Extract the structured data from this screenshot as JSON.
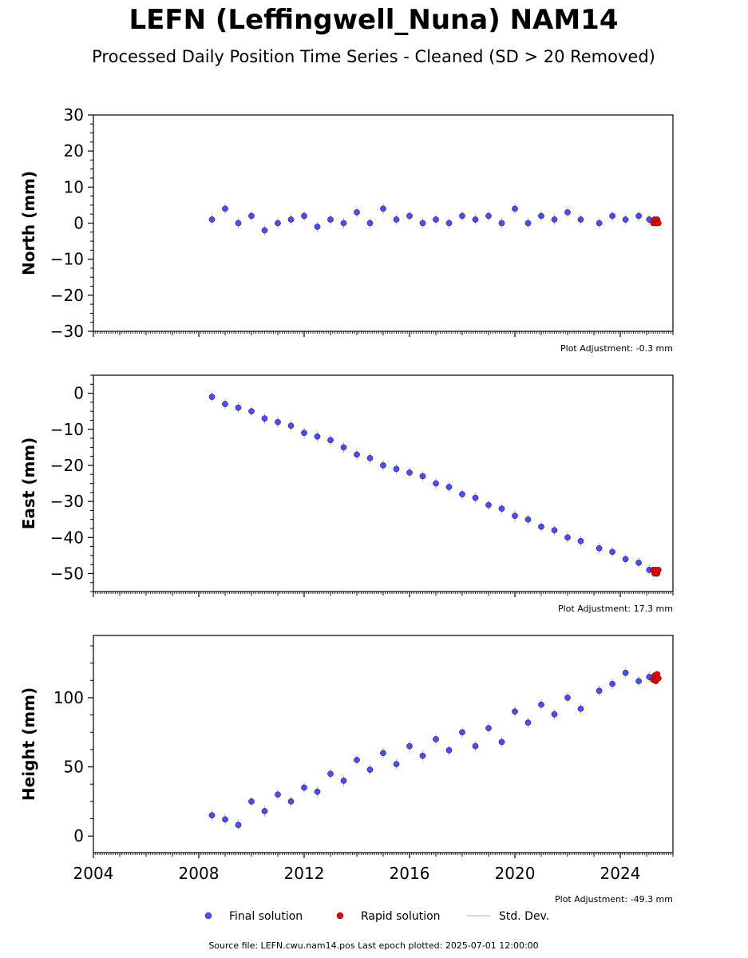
{
  "chart_data": {
    "type": "scatter",
    "title": "LEFN (Leffingwell_Nuna) NAM14",
    "subtitle": "Processed Daily Position Time Series - Cleaned (SD > 20 Removed)",
    "xlim": [
      2004,
      2026
    ],
    "x_ticks": [
      "2004",
      "2008",
      "2012",
      "2016",
      "2020",
      "2024"
    ],
    "x_tick_values": [
      2004,
      2008,
      2012,
      2016,
      2020,
      2024
    ],
    "legend_placement": "bottom-center",
    "legend": [
      "Final solution",
      "Rapid solution",
      "Std. Dev."
    ],
    "colors": {
      "final": "#4B4BFF",
      "rapid": "#EE0000",
      "stddev": "#888888"
    },
    "panels": [
      {
        "id": "north",
        "ylabel": "North (mm)",
        "ylim": [
          -30,
          30
        ],
        "y_ticks": [
          "30",
          "20",
          "10",
          "0",
          "−10",
          "−20",
          "−30"
        ],
        "y_tick_values": [
          30,
          20,
          10,
          0,
          -10,
          -20,
          -30
        ],
        "adjustment": "Plot Adjustment: -0.3 mm",
        "final_series": {
          "x": [
            2008.5,
            2009.0,
            2009.5,
            2010.0,
            2010.5,
            2011.0,
            2011.5,
            2012.0,
            2012.5,
            2013.0,
            2013.5,
            2014.0,
            2014.5,
            2015.0,
            2015.5,
            2016.0,
            2016.5,
            2017.0,
            2017.5,
            2018.0,
            2018.5,
            2019.0,
            2019.5,
            2020.0,
            2020.5,
            2021.0,
            2021.5,
            2022.0,
            2022.5,
            2023.2,
            2023.7,
            2024.2,
            2024.7,
            2025.1
          ],
          "y": [
            1,
            4,
            0,
            2,
            -2,
            0,
            1,
            2,
            -1,
            1,
            0,
            3,
            0,
            4,
            1,
            2,
            0,
            1,
            0,
            2,
            1,
            2,
            0,
            4,
            0,
            2,
            1,
            3,
            1,
            0,
            2,
            1,
            2,
            1
          ]
        },
        "rapid_series": {
          "x": [
            2025.25,
            2025.3,
            2025.35,
            2025.4,
            2025.45
          ],
          "y": [
            0,
            1,
            0,
            1,
            0
          ]
        }
      },
      {
        "id": "east",
        "ylabel": "East (mm)",
        "ylim": [
          -55,
          5
        ],
        "y_ticks": [
          "0",
          "−10",
          "−20",
          "−30",
          "−40",
          "−50"
        ],
        "y_tick_values": [
          0,
          -10,
          -20,
          -30,
          -40,
          -50
        ],
        "adjustment": "Plot Adjustment: 17.3 mm",
        "final_series": {
          "x": [
            2008.5,
            2009.0,
            2009.5,
            2010.0,
            2010.5,
            2011.0,
            2011.5,
            2012.0,
            2012.5,
            2013.0,
            2013.5,
            2014.0,
            2014.5,
            2015.0,
            2015.5,
            2016.0,
            2016.5,
            2017.0,
            2017.5,
            2018.0,
            2018.5,
            2019.0,
            2019.5,
            2020.0,
            2020.5,
            2021.0,
            2021.5,
            2022.0,
            2022.5,
            2023.2,
            2023.7,
            2024.2,
            2024.7,
            2025.1
          ],
          "y": [
            -1,
            -3,
            -4,
            -5,
            -7,
            -8,
            -9,
            -11,
            -12,
            -13,
            -15,
            -17,
            -18,
            -20,
            -21,
            -22,
            -23,
            -25,
            -26,
            -28,
            -29,
            -31,
            -32,
            -34,
            -35,
            -37,
            -38,
            -40,
            -41,
            -43,
            -44,
            -46,
            -47,
            -49
          ]
        },
        "rapid_series": {
          "x": [
            2025.25,
            2025.3,
            2025.35,
            2025.4,
            2025.45
          ],
          "y": [
            -49,
            -50,
            -49,
            -50,
            -49
          ]
        }
      },
      {
        "id": "height",
        "ylabel": "Height (mm)",
        "ylim": [
          -12,
          145
        ],
        "y_ticks": [
          "100",
          "50",
          "0"
        ],
        "y_tick_values": [
          100,
          50,
          0
        ],
        "adjustment": "Plot Adjustment: -49.3 mm",
        "final_series": {
          "x": [
            2008.5,
            2009.0,
            2009.5,
            2010.0,
            2010.5,
            2011.0,
            2011.5,
            2012.0,
            2012.5,
            2013.0,
            2013.5,
            2014.0,
            2014.5,
            2015.0,
            2015.5,
            2016.0,
            2016.5,
            2017.0,
            2017.5,
            2018.0,
            2018.5,
            2019.0,
            2019.5,
            2020.0,
            2020.5,
            2021.0,
            2021.5,
            2022.0,
            2022.5,
            2023.2,
            2023.7,
            2024.2,
            2024.7,
            2025.1
          ],
          "y": [
            15,
            12,
            8,
            25,
            18,
            30,
            25,
            35,
            32,
            45,
            40,
            55,
            48,
            60,
            52,
            65,
            58,
            70,
            62,
            75,
            65,
            78,
            68,
            90,
            82,
            95,
            88,
            100,
            92,
            105,
            110,
            118,
            112,
            115
          ]
        },
        "rapid_series": {
          "x": [
            2025.25,
            2025.3,
            2025.35,
            2025.4,
            2025.45
          ],
          "y": [
            113,
            116,
            112,
            117,
            114
          ]
        }
      }
    ]
  },
  "footer": "Source file: LEFN.cwu.nam14.pos  Last epoch plotted: 2025-07-01 12:00:00"
}
